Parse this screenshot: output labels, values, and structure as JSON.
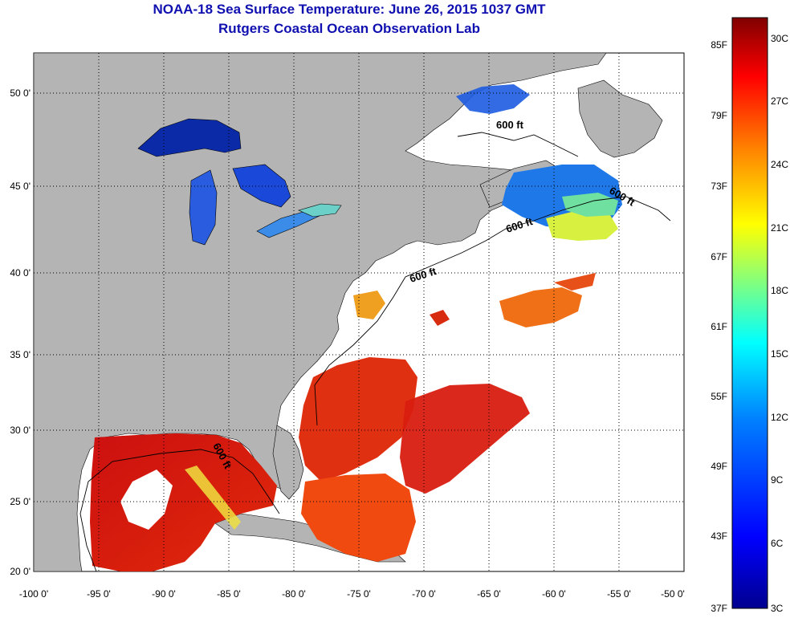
{
  "title": {
    "line1": "NOAA-18 Sea Surface Temperature:  June 26, 2015 1037 GMT",
    "line2": "Rutgers Coastal Ocean Observation Lab"
  },
  "map": {
    "lon_range": [
      -100,
      -50
    ],
    "lat_range": [
      20,
      52.7
    ],
    "lon_ticks": [
      "-100 0'",
      "-95 0'",
      "-90 0'",
      "-85 0'",
      "-80 0'",
      "-75 0'",
      "-70 0'",
      "-65 0'",
      "-60 0'",
      "-55 0'",
      "-50 0'"
    ],
    "lat_ticks": [
      "20 0'",
      "25 0'",
      "30 0'",
      "35 0'",
      "40 0'",
      "45 0'",
      "50 0'"
    ],
    "contour_labels": [
      "600 ft",
      "600 ft",
      "600 ft",
      "600 ft",
      "600 ft"
    ],
    "colors": {
      "land": "#b4b4b4",
      "no_data": "#ffffff",
      "grid": "#000000"
    }
  },
  "colorbar": {
    "fahrenheit_labels": [
      "85F",
      "79F",
      "73F",
      "67F",
      "61F",
      "55F",
      "49F",
      "43F",
      "37F"
    ],
    "celsius_labels": [
      "30C",
      "27C",
      "24C",
      "21C",
      "18C",
      "15C",
      "12C",
      "9C",
      "6C",
      "3C"
    ],
    "range_c": [
      3,
      31
    ],
    "colormap": [
      "#00008f",
      "#0000ff",
      "#0080ff",
      "#00ffff",
      "#80ff80",
      "#ffff00",
      "#ff8000",
      "#ff0000",
      "#800000"
    ]
  }
}
